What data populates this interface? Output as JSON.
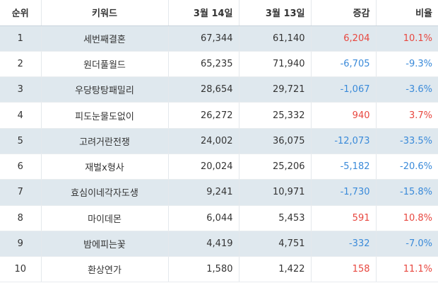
{
  "table": {
    "headers": {
      "rank": "순위",
      "keyword": "키워드",
      "mar14": "3월 14일",
      "mar13": "3월 13일",
      "diff": "증감",
      "ratio": "비율"
    },
    "rows": [
      {
        "rank": "1",
        "keyword": "세번째결혼",
        "mar14": "67,344",
        "mar13": "61,140",
        "diff": "6,204",
        "ratio": "10.1%",
        "trend": "up"
      },
      {
        "rank": "2",
        "keyword": "원더풀월드",
        "mar14": "65,235",
        "mar13": "71,940",
        "diff": "-6,705",
        "ratio": "-9.3%",
        "trend": "down"
      },
      {
        "rank": "3",
        "keyword": "우당탕탕패밀리",
        "mar14": "28,654",
        "mar13": "29,721",
        "diff": "-1,067",
        "ratio": "-3.6%",
        "trend": "down"
      },
      {
        "rank": "4",
        "keyword": "피도눈물도없이",
        "mar14": "26,272",
        "mar13": "25,332",
        "diff": "940",
        "ratio": "3.7%",
        "trend": "up"
      },
      {
        "rank": "5",
        "keyword": "고려거란전쟁",
        "mar14": "24,002",
        "mar13": "36,075",
        "diff": "-12,073",
        "ratio": "-33.5%",
        "trend": "down"
      },
      {
        "rank": "6",
        "keyword": "재벌x형사",
        "mar14": "20,024",
        "mar13": "25,206",
        "diff": "-5,182",
        "ratio": "-20.6%",
        "trend": "down"
      },
      {
        "rank": "7",
        "keyword": "효심이네각자도생",
        "mar14": "9,241",
        "mar13": "10,971",
        "diff": "-1,730",
        "ratio": "-15.8%",
        "trend": "down"
      },
      {
        "rank": "8",
        "keyword": "마이데몬",
        "mar14": "6,044",
        "mar13": "5,453",
        "diff": "591",
        "ratio": "10.8%",
        "trend": "up"
      },
      {
        "rank": "9",
        "keyword": "밤에피는꽃",
        "mar14": "4,419",
        "mar13": "4,751",
        "diff": "-332",
        "ratio": "-7.0%",
        "trend": "down"
      },
      {
        "rank": "10",
        "keyword": "환상연가",
        "mar14": "1,580",
        "mar13": "1,422",
        "diff": "158",
        "ratio": "11.1%",
        "trend": "up"
      }
    ]
  },
  "colors": {
    "positive": "#e8473f",
    "negative": "#3a8ad9",
    "stripe": "#dfe8ee"
  }
}
